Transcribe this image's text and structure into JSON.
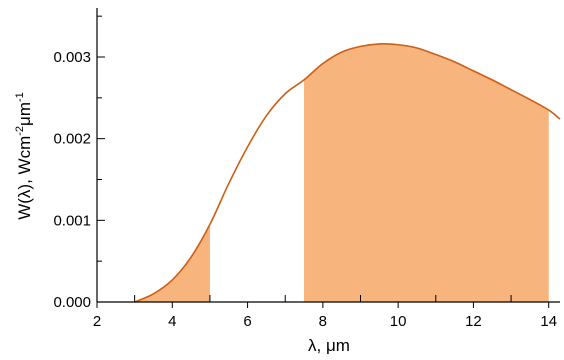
{
  "chart_data": {
    "type": "area",
    "title": "",
    "xlabel": "λ, μm",
    "ylabel": {
      "prefix": "W(λ), Wcm",
      "sup1": "-2",
      "mid": "μm",
      "sup2": "-1"
    },
    "xlim": [
      2,
      14.3
    ],
    "ylim": [
      0,
      0.0036
    ],
    "x_ticks": [
      {
        "value": 2,
        "label": "2"
      },
      {
        "value": 4,
        "label": "4"
      },
      {
        "value": 6,
        "label": "6"
      },
      {
        "value": 8,
        "label": "8"
      },
      {
        "value": 10,
        "label": "10"
      },
      {
        "value": 12,
        "label": "12"
      },
      {
        "value": 14,
        "label": "14"
      }
    ],
    "x_minor_ticks": [
      3,
      5,
      7,
      9,
      11,
      13
    ],
    "y_ticks": [
      {
        "value": 0.0,
        "label": "0.000"
      },
      {
        "value": 0.001,
        "label": "0.001"
      },
      {
        "value": 0.002,
        "label": "0.002"
      },
      {
        "value": 0.003,
        "label": "0.003"
      }
    ],
    "y_minor_ticks": [
      0.0005,
      0.0015,
      0.0025,
      0.0035
    ],
    "grid": false,
    "line_color": "#cc5f14",
    "fill_color": "#f7b47d",
    "series": [
      {
        "x": [
          3.0,
          3.5,
          4.0,
          4.5,
          5.0,
          5.5,
          6.0,
          6.5,
          7.0,
          7.5,
          8.0,
          8.5,
          9.0,
          9.5,
          10.0,
          10.5,
          11.0,
          11.5,
          12.0,
          12.5,
          13.0,
          13.5,
          14.0,
          14.3
        ],
        "y": [
          0.0,
          0.0001,
          0.00027,
          0.00055,
          0.00095,
          0.00145,
          0.0019,
          0.00228,
          0.00255,
          0.00272,
          0.00292,
          0.00306,
          0.00313,
          0.00316,
          0.00315,
          0.00311,
          0.00303,
          0.00294,
          0.00283,
          0.00272,
          0.0026,
          0.00248,
          0.00235,
          0.00224
        ]
      }
    ],
    "shaded_bands": [
      [
        3.0,
        5.0
      ],
      [
        7.5,
        14.0
      ]
    ]
  }
}
